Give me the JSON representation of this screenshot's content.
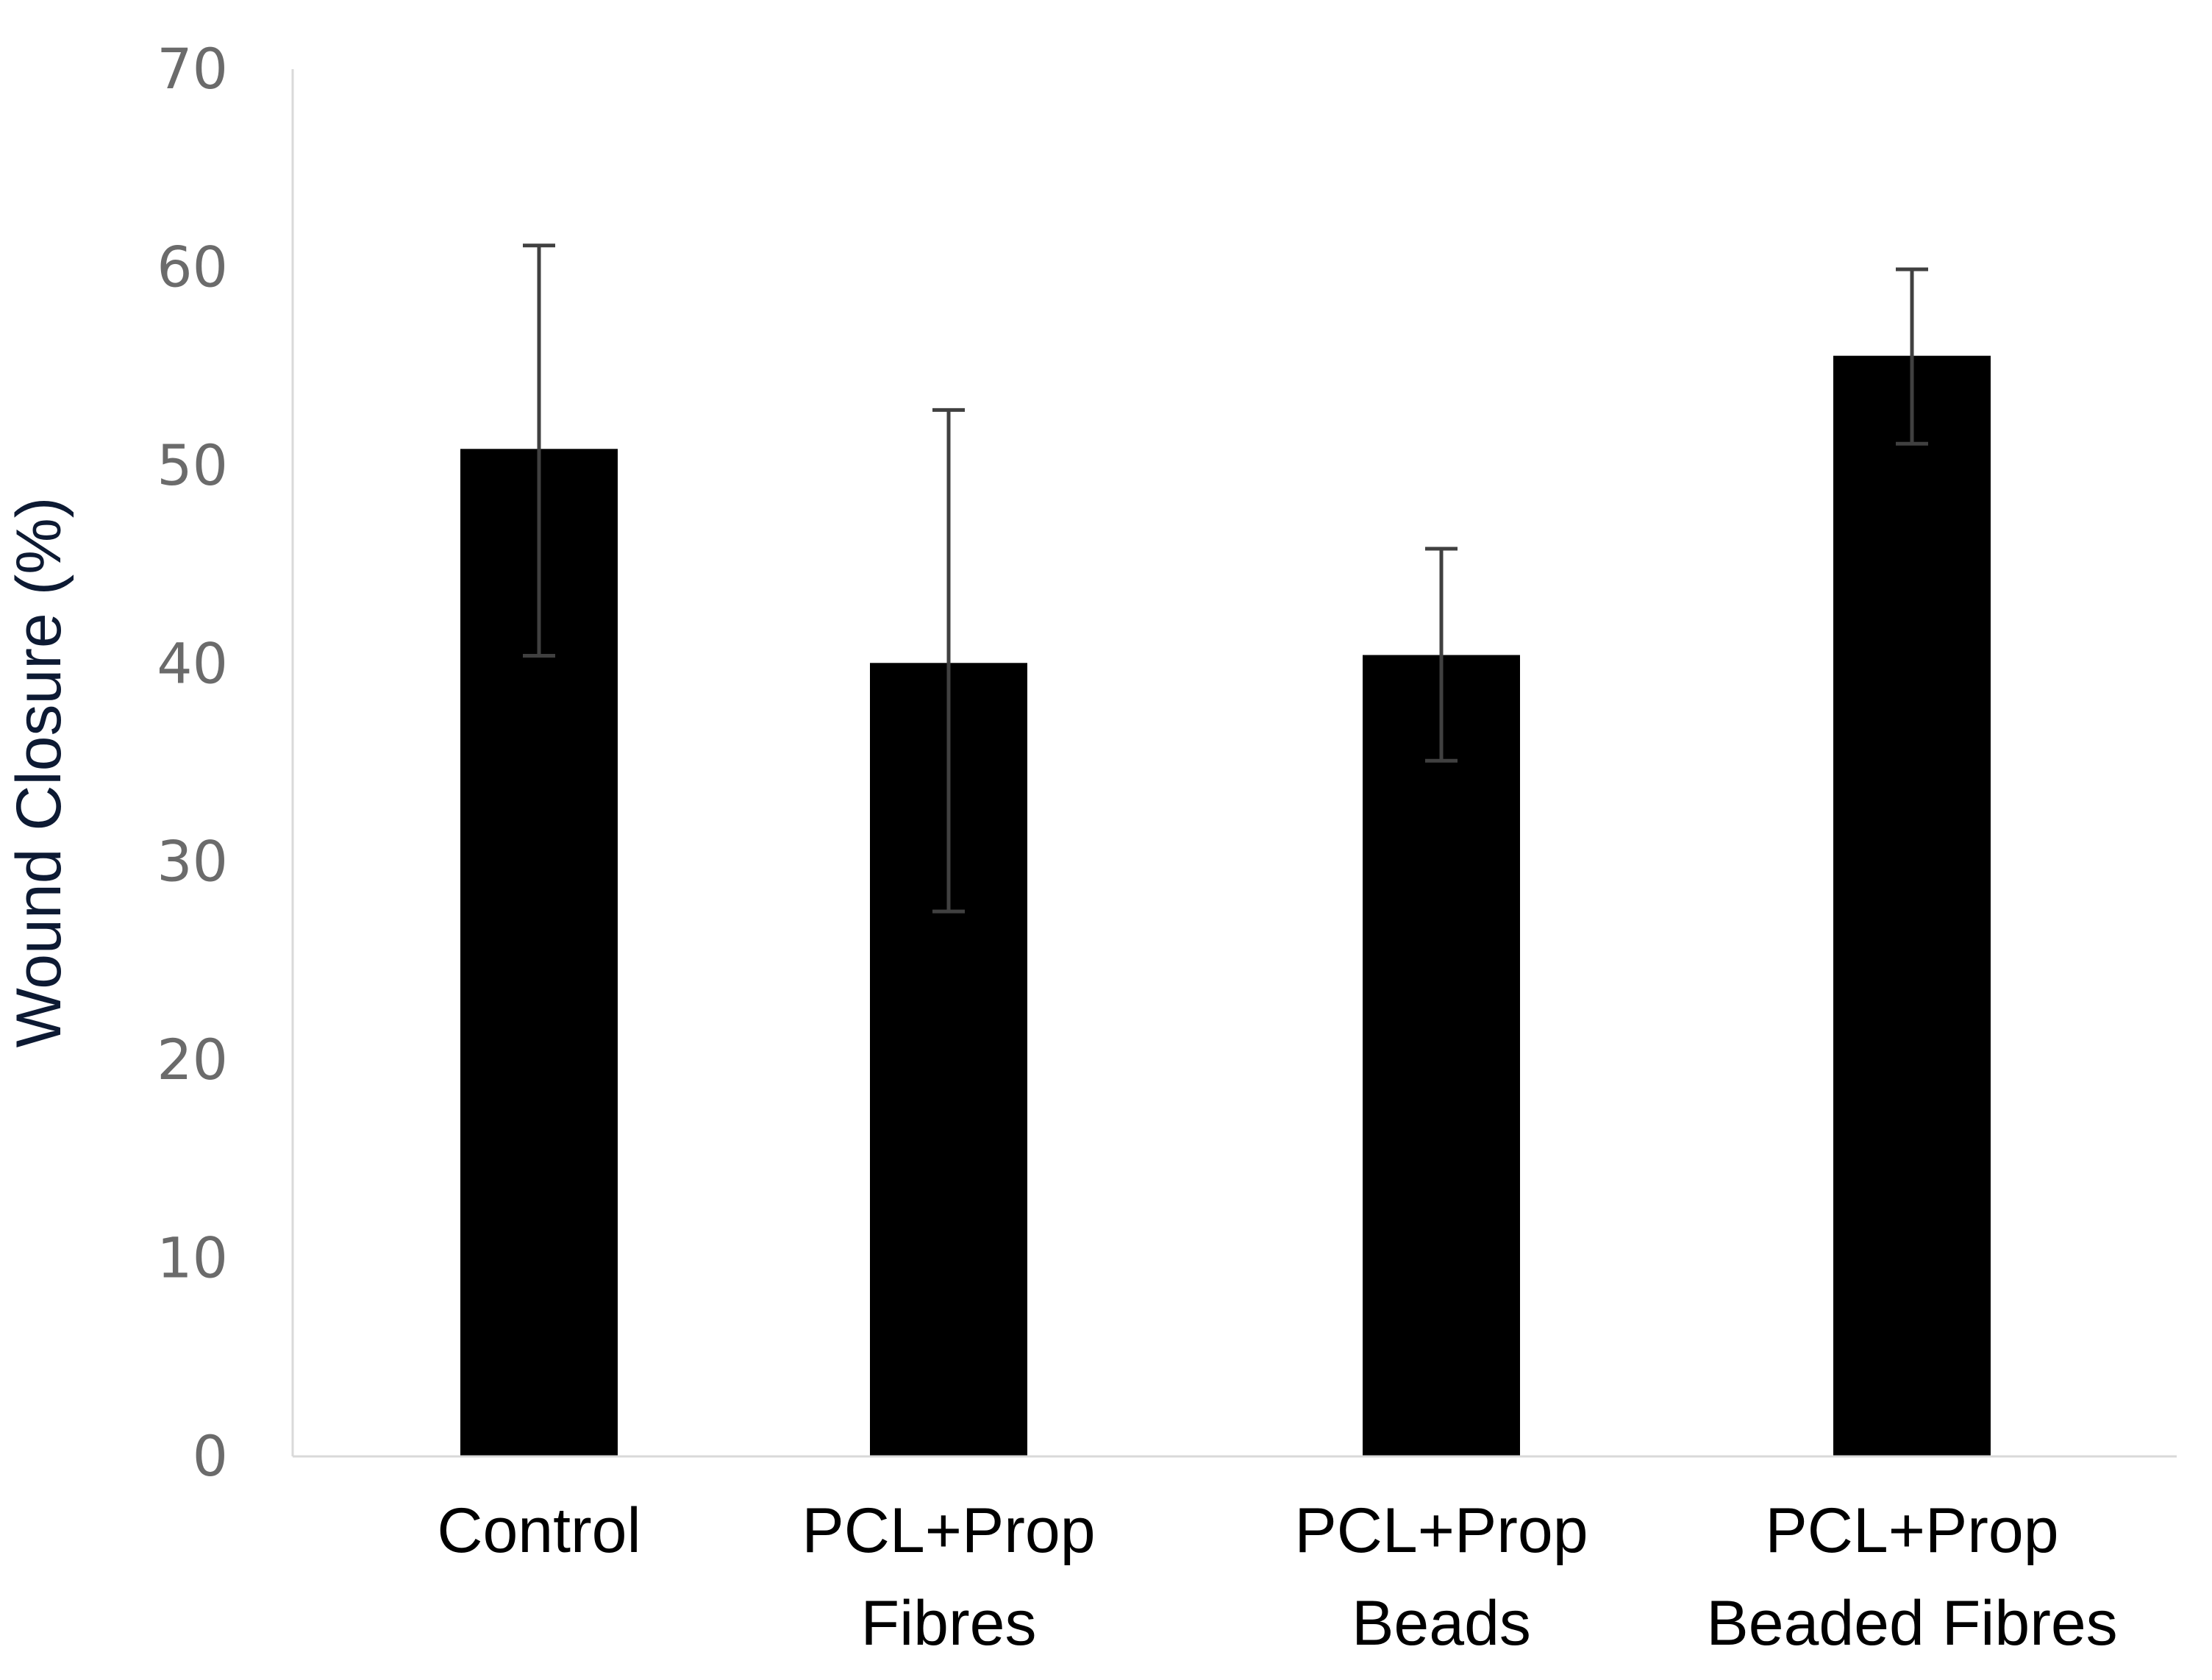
{
  "chart_data": {
    "type": "bar",
    "title": "",
    "xlabel": "",
    "ylabel": "Wound Closure (%)",
    "ylim": [
      0,
      70
    ],
    "yticks": [
      0,
      10,
      20,
      30,
      40,
      50,
      60,
      70
    ],
    "grid": false,
    "categories": [
      [
        "Control"
      ],
      [
        "PCL+Prop",
        "Fibres"
      ],
      [
        "PCL+Prop",
        "Beads"
      ],
      [
        "PCL+Prop",
        "Beaded Fibres"
      ]
    ],
    "values": [
      50.8,
      40.0,
      40.4,
      55.5
    ],
    "error_low": [
      40.4,
      27.5,
      35.1,
      51.1
    ],
    "error_high": [
      61.1,
      52.8,
      45.8,
      59.9
    ],
    "colors": {
      "bar": "#000000",
      "error_bar": "#404040",
      "axis": "#d9d9d9",
      "tick_label": "#6b6b6b",
      "axis_title": "#0d1a33"
    }
  }
}
